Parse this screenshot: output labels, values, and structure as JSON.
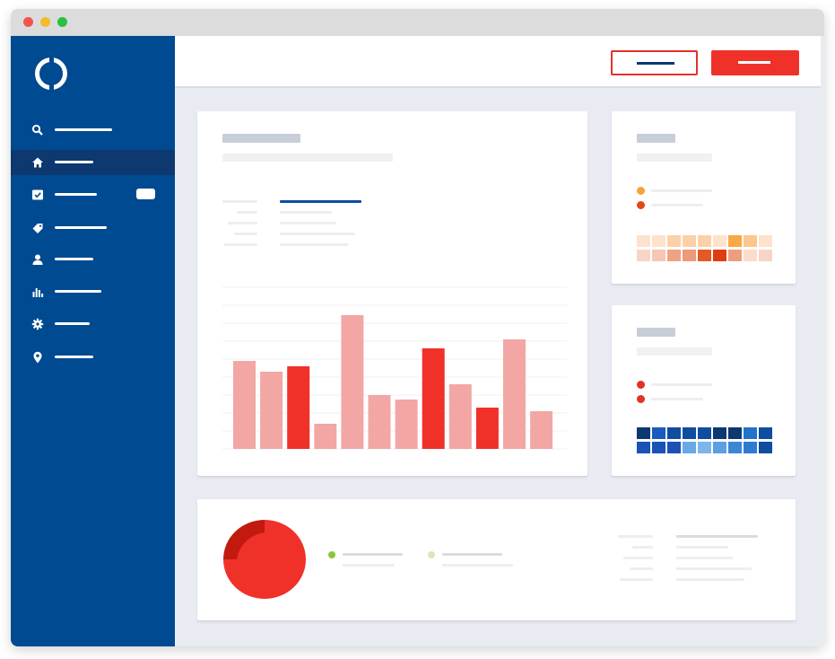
{
  "window": {
    "traffic_lights": [
      "#f0564d",
      "#f4bb2e",
      "#27c23f"
    ]
  },
  "sidebar": {
    "background": "#004a91",
    "items": [
      {
        "icon": "search-icon",
        "active": false,
        "badge": false
      },
      {
        "icon": "home-icon",
        "active": true,
        "badge": false
      },
      {
        "icon": "checkbox-icon",
        "active": false,
        "badge": true
      },
      {
        "icon": "tag-icon",
        "active": false,
        "badge": false
      },
      {
        "icon": "user-icon",
        "active": false,
        "badge": false
      },
      {
        "icon": "bar-chart-icon",
        "active": false,
        "badge": false
      },
      {
        "icon": "gear-icon",
        "active": false,
        "badge": false
      },
      {
        "icon": "map-pin-icon",
        "active": false,
        "badge": false
      }
    ]
  },
  "toolbar": {
    "outline_button_color": "#e3322b",
    "filled_button_color": "#f0312a"
  },
  "bar_chart_card": {
    "chart_data": {
      "type": "bar",
      "series": [
        {
          "values": [
            98,
            86,
            92,
            28,
            149,
            60,
            55,
            112,
            72,
            46,
            122,
            42
          ]
        }
      ],
      "highlighted": [
        false,
        false,
        true,
        false,
        false,
        false,
        false,
        true,
        false,
        true,
        false,
        false
      ],
      "colors": {
        "normal": "#f2a7a4",
        "highlighted": "#f0312a"
      },
      "grid": true
    }
  },
  "orange_card": {
    "legend_colors": [
      "#f5a33c",
      "#e04a1b"
    ],
    "heatmap": {
      "rows": [
        [
          "#fde2cc",
          "#fde2cc",
          "#fcd1a9",
          "#fcd1a9",
          "#fcd1a9",
          "#fde2cc",
          "#f9a844",
          "#fcc68c",
          "#fde2cc"
        ],
        [
          "#f8d4c6",
          "#f6c6b2",
          "#eea384",
          "#ec9a78",
          "#e45a25",
          "#df3e10",
          "#ee9e7c",
          "#fbdccd",
          "#f8d4c6"
        ]
      ]
    }
  },
  "blue_card": {
    "legend_colors": [
      "#e03228",
      "#e03228"
    ],
    "heatmap": {
      "rows": [
        [
          "#0d3870",
          "#1a5bbd",
          "#0d4ea0",
          "#0d4ea0",
          "#0d4ea0",
          "#0d3870",
          "#0d3870",
          "#2073cb",
          "#0d4ea0"
        ],
        [
          "#1a52b5",
          "#1a52b5",
          "#1a52b5",
          "#6aa9e6",
          "#7db6ec",
          "#5da0e2",
          "#3b87d6",
          "#2e7bd0",
          "#0d4ea0"
        ]
      ]
    }
  },
  "bottom_card": {
    "chart_data": {
      "type": "pie",
      "slices": [
        {
          "value": 25,
          "color": "#c31a10"
        },
        {
          "value": 75,
          "color": "#f0312a"
        }
      ]
    },
    "legend_colors": [
      "#8cc63e",
      "#d9e8b8"
    ]
  }
}
